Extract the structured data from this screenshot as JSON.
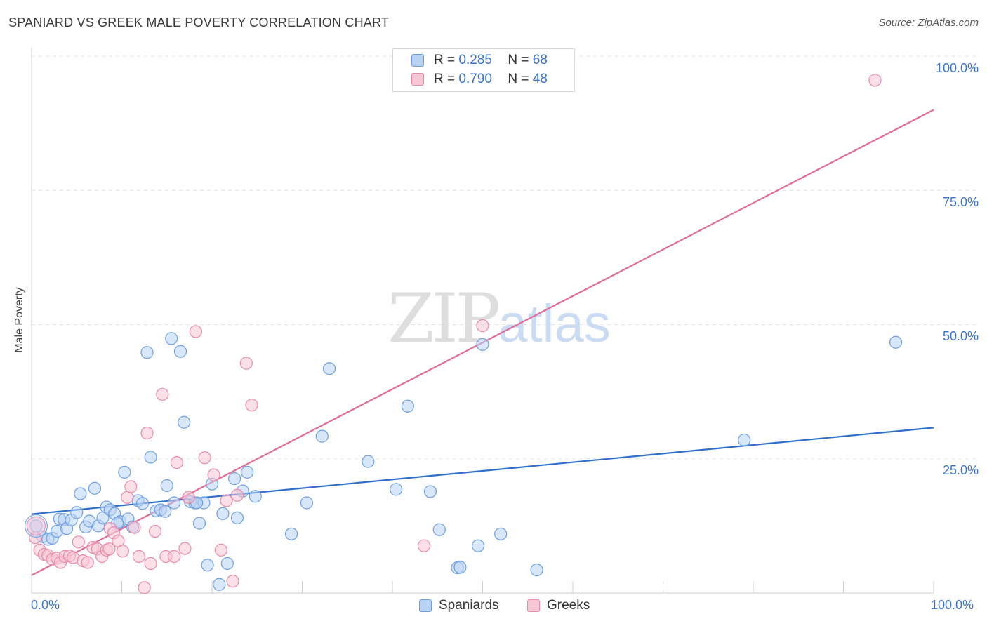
{
  "header": {
    "title": "SPANIARD VS GREEK MALE POVERTY CORRELATION CHART",
    "source": "Source: ZipAtlas.com"
  },
  "watermark": {
    "zip": "ZIP",
    "atlas": "atlas"
  },
  "legend": {
    "r_label": "R =",
    "n_label": "N =",
    "spaniards": {
      "r": "0.285",
      "n": "68"
    },
    "greeks": {
      "r": "0.790",
      "n": "48"
    }
  },
  "colors": {
    "spaniards_fill": "#b9d3f5",
    "spaniards_stroke": "#6d9fe0",
    "spaniards_line": "#2f6fcc",
    "greeks_fill": "#f8c7d6",
    "greeks_stroke": "#e88aa7",
    "greeks_line": "#e06b98"
  },
  "chart_data": {
    "type": "scatter",
    "title": "SPANIARD VS GREEK MALE POVERTY CORRELATION CHART",
    "xlabel": "",
    "ylabel": "Male Poverty",
    "xlim": [
      0,
      100
    ],
    "ylim": [
      0,
      100
    ],
    "x_tick_labels": [
      "0.0%",
      "100.0%"
    ],
    "y_ticks": [
      25,
      50,
      75,
      100
    ],
    "y_tick_labels": [
      "25.0%",
      "50.0%",
      "75.0%",
      "100.0%"
    ],
    "grid": true,
    "legend_position": "top-center",
    "series": [
      {
        "name": "Spaniards",
        "r": 0.285,
        "n": 68,
        "trend": {
          "x": [
            0,
            100
          ],
          "y": [
            14.7,
            30.8
          ]
        },
        "points": [
          [
            0.5,
            12.5
          ],
          [
            1.2,
            10.5
          ],
          [
            1.8,
            10.0
          ],
          [
            2.3,
            10.2
          ],
          [
            2.8,
            11.5
          ],
          [
            3.1,
            13.8
          ],
          [
            3.6,
            13.7
          ],
          [
            3.9,
            12.0
          ],
          [
            4.4,
            13.6
          ],
          [
            5.0,
            15.0
          ],
          [
            5.4,
            18.5
          ],
          [
            6.0,
            12.3
          ],
          [
            6.4,
            13.4
          ],
          [
            7.0,
            19.5
          ],
          [
            7.4,
            12.5
          ],
          [
            7.9,
            14.0
          ],
          [
            8.3,
            16.0
          ],
          [
            8.7,
            15.5
          ],
          [
            9.2,
            14.8
          ],
          [
            9.8,
            13.3
          ],
          [
            10.3,
            22.5
          ],
          [
            10.7,
            13.8
          ],
          [
            11.2,
            12.3
          ],
          [
            11.8,
            17.2
          ],
          [
            12.3,
            16.7
          ],
          [
            12.8,
            44.8
          ],
          [
            13.2,
            25.3
          ],
          [
            13.8,
            15.3
          ],
          [
            14.3,
            15.5
          ],
          [
            15.0,
            20.0
          ],
          [
            15.5,
            47.4
          ],
          [
            15.8,
            16.8
          ],
          [
            16.5,
            45.0
          ],
          [
            16.9,
            31.8
          ],
          [
            17.6,
            17.0
          ],
          [
            18.1,
            16.8
          ],
          [
            18.6,
            13.0
          ],
          [
            19.1,
            16.8
          ],
          [
            19.5,
            5.2
          ],
          [
            20.0,
            20.3
          ],
          [
            20.8,
            1.6
          ],
          [
            21.2,
            14.8
          ],
          [
            21.7,
            5.5
          ],
          [
            22.5,
            21.3
          ],
          [
            22.8,
            14.0
          ],
          [
            23.4,
            19.0
          ],
          [
            23.9,
            22.5
          ],
          [
            24.8,
            18.0
          ],
          [
            28.8,
            11.0
          ],
          [
            30.5,
            16.8
          ],
          [
            32.2,
            29.2
          ],
          [
            33.0,
            41.8
          ],
          [
            37.3,
            24.5
          ],
          [
            40.4,
            19.3
          ],
          [
            41.7,
            34.8
          ],
          [
            44.2,
            18.9
          ],
          [
            45.2,
            11.8
          ],
          [
            47.2,
            4.7
          ],
          [
            47.5,
            4.8
          ],
          [
            49.5,
            8.8
          ],
          [
            50.0,
            46.3
          ],
          [
            52.0,
            11.0
          ],
          [
            56.0,
            4.3
          ],
          [
            79.0,
            28.5
          ],
          [
            95.8,
            46.7
          ],
          [
            14.8,
            15.2
          ],
          [
            9.5,
            13.0
          ],
          [
            18.3,
            16.8
          ]
        ]
      },
      {
        "name": "Greeks",
        "r": 0.79,
        "n": 48,
        "trend": {
          "x": [
            0,
            100
          ],
          "y": [
            3.3,
            90.0
          ]
        },
        "points": [
          [
            0.4,
            10.3
          ],
          [
            0.9,
            8.0
          ],
          [
            1.4,
            7.2
          ],
          [
            1.8,
            7.0
          ],
          [
            2.3,
            6.3
          ],
          [
            2.8,
            6.5
          ],
          [
            3.2,
            5.7
          ],
          [
            3.7,
            6.8
          ],
          [
            4.2,
            6.9
          ],
          [
            4.6,
            6.6
          ],
          [
            5.2,
            9.5
          ],
          [
            5.7,
            6.0
          ],
          [
            6.2,
            5.7
          ],
          [
            6.8,
            8.5
          ],
          [
            7.3,
            8.2
          ],
          [
            7.8,
            6.8
          ],
          [
            8.3,
            8.0
          ],
          [
            8.7,
            12.0
          ],
          [
            9.1,
            11.2
          ],
          [
            9.6,
            9.7
          ],
          [
            10.1,
            7.8
          ],
          [
            10.6,
            17.8
          ],
          [
            11.0,
            19.8
          ],
          [
            11.4,
            12.2
          ],
          [
            11.9,
            6.8
          ],
          [
            12.5,
            1.0
          ],
          [
            12.8,
            29.8
          ],
          [
            13.2,
            5.5
          ],
          [
            13.7,
            11.5
          ],
          [
            14.5,
            37.0
          ],
          [
            14.9,
            6.8
          ],
          [
            15.8,
            6.8
          ],
          [
            16.1,
            24.3
          ],
          [
            17.0,
            8.3
          ],
          [
            17.4,
            17.8
          ],
          [
            18.2,
            48.7
          ],
          [
            19.2,
            25.2
          ],
          [
            20.2,
            22.0
          ],
          [
            21.0,
            8.0
          ],
          [
            21.6,
            17.2
          ],
          [
            22.3,
            2.2
          ],
          [
            22.8,
            18.2
          ],
          [
            23.8,
            42.8
          ],
          [
            24.4,
            35.0
          ],
          [
            43.5,
            8.8
          ],
          [
            50.0,
            49.8
          ],
          [
            93.5,
            95.5
          ],
          [
            8.6,
            8.2
          ]
        ]
      }
    ]
  },
  "bottom_legend": {
    "spaniards": "Spaniards",
    "greeks": "Greeks"
  }
}
